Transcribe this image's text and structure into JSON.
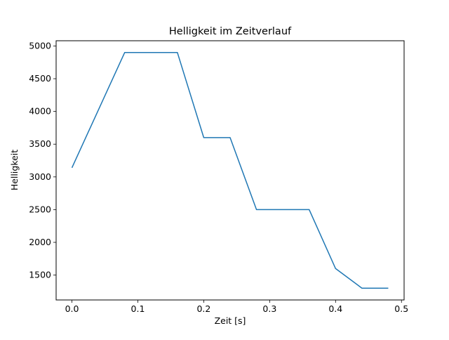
{
  "chart_data": {
    "type": "line",
    "title": "Helligkeit im Zeitverlauf",
    "xlabel": "Zeit [s]",
    "ylabel": "Helligkeit",
    "x": [
      0.0,
      0.04,
      0.08,
      0.12,
      0.16,
      0.2,
      0.24,
      0.28,
      0.32,
      0.36,
      0.4,
      0.44,
      0.48
    ],
    "y": [
      3140,
      4020,
      4900,
      4900,
      4900,
      3600,
      3600,
      2500,
      2500,
      2500,
      1600,
      1300,
      1300
    ],
    "series": [
      {
        "name": "Helligkeit",
        "values": [
          3140,
          4020,
          4900,
          4900,
          4900,
          3600,
          3600,
          2500,
          2500,
          2500,
          1600,
          1300,
          1300
        ]
      }
    ],
    "xlim": [
      -0.024,
      0.504
    ],
    "ylim": [
      1120,
      5080
    ],
    "xticks": [
      0.0,
      0.1,
      0.2,
      0.3,
      0.4,
      0.5
    ],
    "xtick_labels": [
      "0.0",
      "0.1",
      "0.2",
      "0.3",
      "0.4",
      "0.5"
    ],
    "yticks": [
      1500,
      2000,
      2500,
      3000,
      3500,
      4000,
      4500,
      5000
    ],
    "ytick_labels": [
      "1500",
      "2000",
      "2500",
      "3000",
      "3500",
      "4000",
      "4500",
      "5000"
    ],
    "line_color": "#1f77b4",
    "background_color": "#ffffff",
    "grid": false,
    "legend_position": "none"
  }
}
